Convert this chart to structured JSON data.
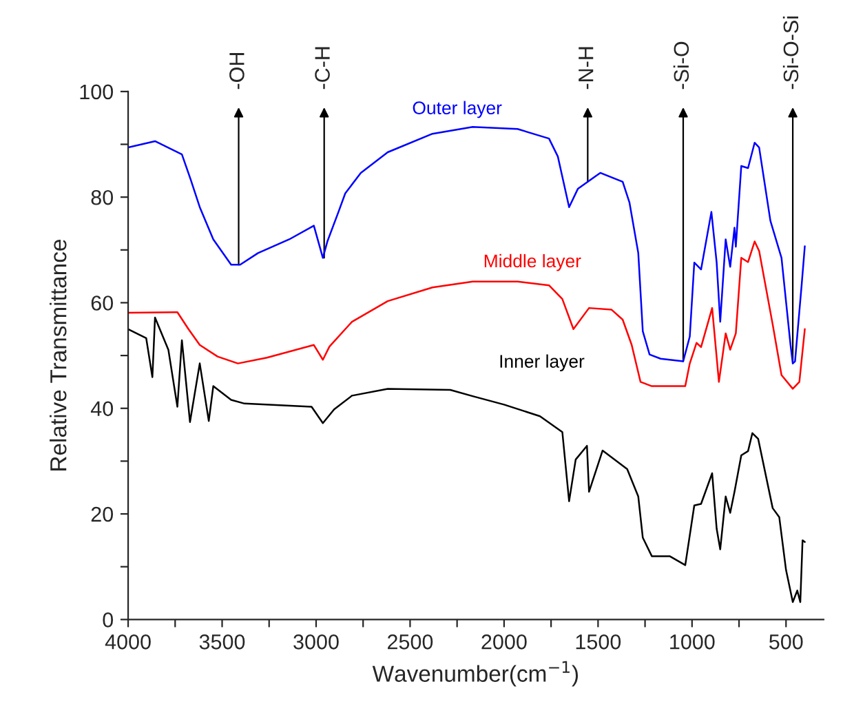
{
  "chart_data": {
    "type": "line",
    "xlabel": "Wavenumber(cm$^{−1}$)",
    "ylabel": "Relative Transmittance",
    "xlim": [
      4000,
      300
    ],
    "ylim": [
      0,
      100
    ],
    "xticks": [
      4000,
      {
        "value": 3750,
        "label": null
      },
      3500,
      {
        "value": 3250,
        "label": null
      },
      3000,
      {
        "value": 2750,
        "label": null
      },
      2500,
      {
        "value": 2250,
        "label": null
      },
      2000,
      {
        "value": 1750,
        "label": null
      },
      1500,
      {
        "value": 1250,
        "label": null
      },
      1000,
      {
        "value": 750,
        "label": null
      },
      500
    ],
    "yticks": [
      0,
      {
        "value": 10,
        "label": null
      },
      20,
      {
        "value": 30,
        "label": null
      },
      40,
      {
        "value": 50,
        "label": null
      },
      60,
      {
        "value": 70,
        "label": null
      },
      80,
      {
        "value": 90,
        "label": null
      },
      100
    ],
    "grid": false,
    "legend": false,
    "marker": "none",
    "line_style": "solid",
    "series": [
      {
        "name": "Outer layer",
        "color": "#0000ff",
        "x": [
          4000,
          3857,
          3714,
          3667,
          3619,
          3547,
          3452,
          3404,
          3309,
          3143,
          3012,
          2964,
          2940,
          2881,
          2845,
          2762,
          2619,
          2381,
          2167,
          1928,
          1761,
          1714,
          1654,
          1607,
          1488,
          1369,
          1333,
          1286,
          1262,
          1226,
          1167,
          1047,
          1012,
          988,
          952,
          897,
          869,
          850,
          821,
          797,
          774,
          767,
          738,
          702,
          667,
          643,
          583,
          524,
          476,
          464,
          452,
          417,
          400
        ],
        "values": [
          89.4,
          90.6,
          88.1,
          83.3,
          78.1,
          72.0,
          67.2,
          67.2,
          69.4,
          72.0,
          74.6,
          68.5,
          71.6,
          77.2,
          80.7,
          84.6,
          88.5,
          92.0,
          93.3,
          92.9,
          91.1,
          87.7,
          78.1,
          81.6,
          84.6,
          82.9,
          79.0,
          69.4,
          54.6,
          50.2,
          49.4,
          48.9,
          53.6,
          67.6,
          66.3,
          77.2,
          67.6,
          56.4,
          72.0,
          66.8,
          74.2,
          70.6,
          85.9,
          85.5,
          90.3,
          89.4,
          75.5,
          68.5,
          52.0,
          48.5,
          48.9,
          63.3,
          70.7
        ]
      },
      {
        "name": "Middle layer",
        "color": "#ff0000",
        "x": [
          4000,
          3738,
          3679,
          3619,
          3524,
          3416,
          3262,
          3012,
          2964,
          2929,
          2809,
          2619,
          2381,
          2167,
          1928,
          1761,
          1690,
          1631,
          1548,
          1429,
          1369,
          1321,
          1274,
          1214,
          1036,
          1012,
          976,
          952,
          893,
          857,
          821,
          797,
          767,
          738,
          702,
          667,
          643,
          571,
          524,
          464,
          429,
          400
        ],
        "values": [
          58.1,
          58.2,
          55.0,
          52.0,
          49.8,
          48.5,
          49.6,
          52.0,
          49.2,
          51.7,
          56.4,
          60.3,
          62.9,
          64.0,
          64.0,
          63.3,
          60.7,
          55.0,
          59.0,
          58.7,
          56.8,
          52.0,
          45.0,
          44.2,
          44.2,
          48.5,
          52.4,
          51.6,
          59.0,
          45.0,
          54.2,
          51.1,
          54.2,
          68.5,
          67.7,
          71.6,
          69.8,
          55.9,
          46.3,
          43.7,
          45.0,
          55.0
        ]
      },
      {
        "name": "Inner layer",
        "color": "#000000",
        "x": [
          4000,
          3904,
          3871,
          3857,
          3786,
          3738,
          3714,
          3671,
          3619,
          3571,
          3547,
          3452,
          3381,
          3024,
          2964,
          2904,
          2809,
          2619,
          2286,
          2167,
          2000,
          1809,
          1690,
          1654,
          1619,
          1559,
          1548,
          1476,
          1345,
          1286,
          1262,
          1214,
          1119,
          1036,
          988,
          952,
          893,
          869,
          850,
          821,
          797,
          774,
          738,
          702,
          679,
          648,
          571,
          536,
          500,
          464,
          440,
          424,
          412,
          400
        ],
        "values": [
          55.0,
          53.3,
          45.9,
          57.2,
          51.1,
          40.3,
          52.9,
          37.4,
          48.5,
          37.6,
          44.2,
          41.6,
          40.9,
          40.3,
          37.2,
          39.8,
          42.4,
          43.7,
          43.5,
          42.3,
          40.7,
          38.5,
          35.5,
          22.4,
          30.3,
          32.9,
          24.2,
          32.0,
          28.5,
          23.3,
          15.5,
          12.0,
          12.0,
          10.3,
          21.6,
          21.9,
          27.7,
          17.2,
          13.3,
          23.3,
          20.2,
          24.2,
          31.1,
          31.9,
          35.3,
          34.2,
          21.1,
          19.4,
          9.4,
          3.3,
          5.5,
          3.3,
          15.0,
          14.7
        ]
      }
    ],
    "annotations": [
      {
        "text": "-OH",
        "x": 3412,
        "y": 67.2
      },
      {
        "text": "-C-H",
        "x": 2957,
        "y": 68.5
      },
      {
        "text": "-N-H",
        "x": 1555,
        "y": 82.9
      },
      {
        "text": "-Si-O",
        "x": 1047,
        "y": 48.9
      },
      {
        "text": "-Si-O-Si",
        "x": 464,
        "y": 48.5
      }
    ]
  }
}
